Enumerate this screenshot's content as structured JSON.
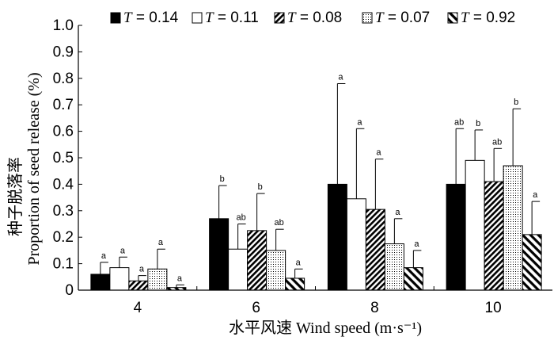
{
  "chart_data": {
    "type": "bar",
    "categories": [
      "4",
      "6",
      "8",
      "10"
    ],
    "xlabel": "水平风速 Wind speed (m·s⁻¹)",
    "ylabel_cn": "种子脱落率",
    "ylabel_en": "Proportion of seed release (%)",
    "ylim": [
      0,
      1.0
    ],
    "yticks": [
      "0",
      "0.1",
      "0.2",
      "0.3",
      "0.4",
      "0.5",
      "0.6",
      "0.7",
      "0.8",
      "0.9",
      "1.0"
    ],
    "legend_position": "top",
    "series": [
      {
        "name": "= 0.14",
        "values": [
          0.06,
          0.27,
          0.4,
          0.4
        ],
        "errors": [
          0.045,
          0.125,
          0.38,
          0.21
        ],
        "labels": [
          "a",
          "b",
          "a",
          "ab"
        ],
        "pattern": "solid"
      },
      {
        "name": "= 0.11",
        "values": [
          0.085,
          0.155,
          0.345,
          0.49
        ],
        "errors": [
          0.04,
          0.095,
          0.265,
          0.115
        ],
        "labels": [
          "a",
          "ab",
          "a",
          "b"
        ],
        "pattern": "white"
      },
      {
        "name": "= 0.08",
        "values": [
          0.035,
          0.225,
          0.305,
          0.41
        ],
        "errors": [
          0.02,
          0.14,
          0.19,
          0.125
        ],
        "labels": [
          "a",
          "b",
          "a",
          "ab"
        ],
        "pattern": "backslash"
      },
      {
        "name": "= 0.07",
        "values": [
          0.08,
          0.15,
          0.175,
          0.47
        ],
        "errors": [
          0.075,
          0.08,
          0.095,
          0.215
        ],
        "labels": [
          "a",
          "ab",
          "a",
          "b"
        ],
        "pattern": "dots"
      },
      {
        "name": "= 0.92",
        "values": [
          0.01,
          0.045,
          0.085,
          0.21
        ],
        "errors": [
          0.01,
          0.035,
          0.065,
          0.125
        ],
        "labels": [
          "a",
          "a",
          "a",
          "a"
        ],
        "pattern": "slash"
      }
    ]
  },
  "legend": {
    "t_symbol": "T"
  }
}
